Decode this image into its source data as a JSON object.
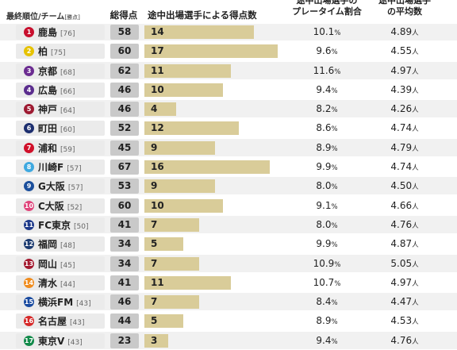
{
  "header": {
    "team_col": "最終順位/チーム",
    "team_col_sub": "[勝点]",
    "total_col": "総得点",
    "sub_col": "途中出場選手による得点数",
    "play_col_line1": "途中出場選手の",
    "play_col_line2": "プレータイム割合",
    "avg_col_line1": "途中出場選手",
    "avg_col_line2": "の平均数"
  },
  "units": {
    "percent": "%",
    "people": "人"
  },
  "rows": [
    {
      "rank": "1",
      "team": "鹿島",
      "points": "[76]",
      "total": "58",
      "sub_goals": 14,
      "play_num": "10.1",
      "avg_num": "4.89",
      "badge_color": "#c8102e"
    },
    {
      "rank": "2",
      "team": "柏",
      "points": "[75]",
      "total": "60",
      "sub_goals": 17,
      "play_num": "9.6",
      "avg_num": "4.55",
      "badge_color": "#e6c200"
    },
    {
      "rank": "3",
      "team": "京都",
      "points": "[68]",
      "total": "62",
      "sub_goals": 11,
      "play_num": "11.6",
      "avg_num": "4.97",
      "badge_color": "#6b2c91"
    },
    {
      "rank": "4",
      "team": "広島",
      "points": "[66]",
      "total": "46",
      "sub_goals": 10,
      "play_num": "9.4",
      "avg_num": "4.39",
      "badge_color": "#5b2d8e"
    },
    {
      "rank": "5",
      "team": "神戸",
      "points": "[64]",
      "total": "46",
      "sub_goals": 4,
      "play_num": "8.2",
      "avg_num": "4.26",
      "badge_color": "#9e1b32"
    },
    {
      "rank": "6",
      "team": "町田",
      "points": "[60]",
      "total": "52",
      "sub_goals": 12,
      "play_num": "8.6",
      "avg_num": "4.74",
      "badge_color": "#1d2f6f"
    },
    {
      "rank": "7",
      "team": "浦和",
      "points": "[59]",
      "total": "45",
      "sub_goals": 9,
      "play_num": "8.9",
      "avg_num": "4.79",
      "badge_color": "#d0102a"
    },
    {
      "rank": "8",
      "team": "川崎F",
      "points": "[57]",
      "total": "67",
      "sub_goals": 16,
      "play_num": "9.9",
      "avg_num": "4.74",
      "badge_color": "#3fa9e0"
    },
    {
      "rank": "9",
      "team": "G大阪",
      "points": "[57]",
      "total": "53",
      "sub_goals": 9,
      "play_num": "8.0",
      "avg_num": "4.50",
      "badge_color": "#1b4f9c"
    },
    {
      "rank": "10",
      "team": "C大阪",
      "points": "[52]",
      "total": "60",
      "sub_goals": 10,
      "play_num": "9.1",
      "avg_num": "4.66",
      "badge_color": "#e0457b"
    },
    {
      "rank": "11",
      "team": "FC東京",
      "points": "[50]",
      "total": "41",
      "sub_goals": 7,
      "play_num": "8.0",
      "avg_num": "4.76",
      "badge_color": "#1e3a8a"
    },
    {
      "rank": "12",
      "team": "福岡",
      "points": "[48]",
      "total": "34",
      "sub_goals": 5,
      "play_num": "9.9",
      "avg_num": "4.87",
      "badge_color": "#1c3b70"
    },
    {
      "rank": "13",
      "team": "岡山",
      "points": "[45]",
      "total": "34",
      "sub_goals": 7,
      "play_num": "10.9",
      "avg_num": "5.05",
      "badge_color": "#a3192f"
    },
    {
      "rank": "14",
      "team": "清水",
      "points": "[44]",
      "total": "41",
      "sub_goals": 11,
      "play_num": "10.7",
      "avg_num": "4.97",
      "badge_color": "#f08c1e"
    },
    {
      "rank": "15",
      "team": "横浜FM",
      "points": "[43]",
      "total": "46",
      "sub_goals": 7,
      "play_num": "8.4",
      "avg_num": "4.47",
      "badge_color": "#1a4ba0"
    },
    {
      "rank": "16",
      "team": "名古屋",
      "points": "[43]",
      "total": "44",
      "sub_goals": 5,
      "play_num": "8.9",
      "avg_num": "4.53",
      "badge_color": "#d62828"
    },
    {
      "rank": "17",
      "team": "東京V",
      "points": "[43]",
      "total": "23",
      "sub_goals": 3,
      "play_num": "9.4",
      "avg_num": "4.76",
      "badge_color": "#128a4a"
    }
  ],
  "bar_max": 17
}
